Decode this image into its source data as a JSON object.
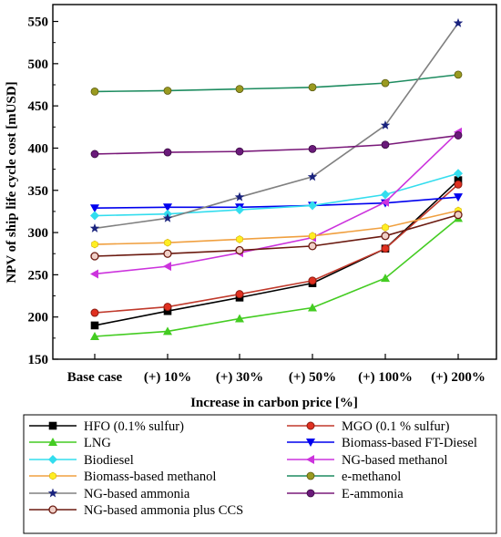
{
  "chart_data": {
    "type": "line",
    "xlabel": "Increase in carbon price [%]",
    "ylabel": "NPV of ship life cycle cost [mUSD]",
    "categories": [
      "Base case",
      "(+) 10%",
      "(+) 30%",
      "(+) 50%",
      "(+) 100%",
      "(+) 200%"
    ],
    "ylim": [
      150,
      570
    ],
    "yticks": [
      150,
      200,
      250,
      300,
      350,
      400,
      450,
      500,
      550
    ],
    "grid": false,
    "legend_position": "bottom",
    "series": [
      {
        "name": "HFO (0.1% sulfur)",
        "color": "#000000",
        "marker": "square",
        "values": [
          190,
          207,
          223,
          240,
          281,
          362
        ]
      },
      {
        "name": "MGO (0.1 % sulfur)",
        "color": "#c0392b",
        "marker": "circle",
        "values": [
          205,
          212,
          227,
          243,
          281,
          357
        ]
      },
      {
        "name": "LNG",
        "color": "#44cc22",
        "marker": "triangle-up",
        "values": [
          177,
          183,
          198,
          211,
          246,
          317
        ]
      },
      {
        "name": "Biomass-based FT-Diesel",
        "color": "#0000ee",
        "marker": "triangle-down",
        "values": [
          329,
          330,
          330,
          332,
          335,
          342
        ]
      },
      {
        "name": "Biodiesel",
        "color": "#33ddee",
        "marker": "diamond",
        "values": [
          320,
          322,
          327,
          332,
          345,
          370
        ]
      },
      {
        "name": "NG-based methanol",
        "color": "#cc33dd",
        "marker": "triangle-left",
        "values": [
          251,
          260,
          276,
          294,
          336,
          419
        ]
      },
      {
        "name": "Biomass-based methanol",
        "color": "#f0a040",
        "marker": "hexagon",
        "values": [
          286,
          288,
          292,
          296,
          306,
          326
        ]
      },
      {
        "name": "e-methanol",
        "color": "#1e8c60",
        "marker": "circle-olive",
        "values": [
          467,
          468,
          470,
          472,
          477,
          487
        ]
      },
      {
        "name": "NG-based ammonia",
        "color": "#808080",
        "marker": "star",
        "values": [
          305,
          317,
          342,
          366,
          427,
          548
        ]
      },
      {
        "name": "E-ammonia",
        "color": "#7a1a7a",
        "marker": "circle-purple",
        "values": [
          393,
          395,
          396,
          399,
          404,
          415
        ]
      },
      {
        "name": "NG-based ammonia plus CCS",
        "color": "#6b1a10",
        "marker": "circle-hollow",
        "values": [
          272,
          275,
          279,
          284,
          296,
          321
        ]
      }
    ]
  }
}
